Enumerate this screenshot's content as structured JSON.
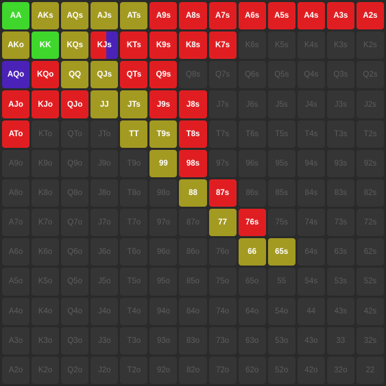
{
  "colors": {
    "red": "#e01e22",
    "olive": "#a39a22",
    "green": "#3fd72c",
    "purple": "#4a22b8",
    "empty": "#353535"
  },
  "grid": [
    [
      [
        "AA",
        "green"
      ],
      [
        "AKs",
        "olive"
      ],
      [
        "AQs",
        "olive"
      ],
      [
        "AJs",
        "olive"
      ],
      [
        "ATs",
        "olive"
      ],
      [
        "A9s",
        "red"
      ],
      [
        "A8s",
        "red"
      ],
      [
        "A7s",
        "red"
      ],
      [
        "A6s",
        "red"
      ],
      [
        "A5s",
        "red"
      ],
      [
        "A4s",
        "red"
      ],
      [
        "A3s",
        "red"
      ],
      [
        "A2s",
        "red"
      ]
    ],
    [
      [
        "AKo",
        "olive"
      ],
      [
        "KK",
        "green"
      ],
      [
        "KQs",
        "olive"
      ],
      [
        "KJs",
        "split"
      ],
      [
        "KTs",
        "red"
      ],
      [
        "K9s",
        "red"
      ],
      [
        "K8s",
        "red"
      ],
      [
        "K7s",
        "red"
      ],
      [
        "K6s",
        "empty"
      ],
      [
        "K5s",
        "empty"
      ],
      [
        "K4s",
        "empty"
      ],
      [
        "K3s",
        "empty"
      ],
      [
        "K2s",
        "empty"
      ]
    ],
    [
      [
        "AQo",
        "purple"
      ],
      [
        "KQo",
        "red"
      ],
      [
        "QQ",
        "olive"
      ],
      [
        "QJs",
        "olive"
      ],
      [
        "QTs",
        "red"
      ],
      [
        "Q9s",
        "red"
      ],
      [
        "Q8s",
        "empty"
      ],
      [
        "Q7s",
        "empty"
      ],
      [
        "Q6s",
        "empty"
      ],
      [
        "Q5s",
        "empty"
      ],
      [
        "Q4s",
        "empty"
      ],
      [
        "Q3s",
        "empty"
      ],
      [
        "Q2s",
        "empty"
      ]
    ],
    [
      [
        "AJo",
        "red"
      ],
      [
        "KJo",
        "red"
      ],
      [
        "QJo",
        "red"
      ],
      [
        "JJ",
        "olive"
      ],
      [
        "JTs",
        "olive"
      ],
      [
        "J9s",
        "red"
      ],
      [
        "J8s",
        "red"
      ],
      [
        "J7s",
        "empty"
      ],
      [
        "J6s",
        "empty"
      ],
      [
        "J5s",
        "empty"
      ],
      [
        "J4s",
        "empty"
      ],
      [
        "J3s",
        "empty"
      ],
      [
        "J2s",
        "empty"
      ]
    ],
    [
      [
        "ATo",
        "red"
      ],
      [
        "KTo",
        "empty"
      ],
      [
        "QTo",
        "empty"
      ],
      [
        "JTo",
        "empty"
      ],
      [
        "TT",
        "olive"
      ],
      [
        "T9s",
        "olive"
      ],
      [
        "T8s",
        "red"
      ],
      [
        "T7s",
        "empty"
      ],
      [
        "T6s",
        "empty"
      ],
      [
        "T5s",
        "empty"
      ],
      [
        "T4s",
        "empty"
      ],
      [
        "T3s",
        "empty"
      ],
      [
        "T2s",
        "empty"
      ]
    ],
    [
      [
        "A9o",
        "empty"
      ],
      [
        "K9o",
        "empty"
      ],
      [
        "Q9o",
        "empty"
      ],
      [
        "J9o",
        "empty"
      ],
      [
        "T9o",
        "empty"
      ],
      [
        "99",
        "olive"
      ],
      [
        "98s",
        "red"
      ],
      [
        "97s",
        "empty"
      ],
      [
        "96s",
        "empty"
      ],
      [
        "95s",
        "empty"
      ],
      [
        "94s",
        "empty"
      ],
      [
        "93s",
        "empty"
      ],
      [
        "92s",
        "empty"
      ]
    ],
    [
      [
        "A8o",
        "empty"
      ],
      [
        "K8o",
        "empty"
      ],
      [
        "Q8o",
        "empty"
      ],
      [
        "J8o",
        "empty"
      ],
      [
        "T8o",
        "empty"
      ],
      [
        "98o",
        "empty"
      ],
      [
        "88",
        "olive"
      ],
      [
        "87s",
        "red"
      ],
      [
        "86s",
        "empty"
      ],
      [
        "85s",
        "empty"
      ],
      [
        "84s",
        "empty"
      ],
      [
        "83s",
        "empty"
      ],
      [
        "82s",
        "empty"
      ]
    ],
    [
      [
        "A7o",
        "empty"
      ],
      [
        "K7o",
        "empty"
      ],
      [
        "Q7o",
        "empty"
      ],
      [
        "J7o",
        "empty"
      ],
      [
        "T7o",
        "empty"
      ],
      [
        "97o",
        "empty"
      ],
      [
        "87o",
        "empty"
      ],
      [
        "77",
        "olive"
      ],
      [
        "76s",
        "red"
      ],
      [
        "75s",
        "empty"
      ],
      [
        "74s",
        "empty"
      ],
      [
        "73s",
        "empty"
      ],
      [
        "72s",
        "empty"
      ]
    ],
    [
      [
        "A6o",
        "empty"
      ],
      [
        "K6o",
        "empty"
      ],
      [
        "Q6o",
        "empty"
      ],
      [
        "J6o",
        "empty"
      ],
      [
        "T6o",
        "empty"
      ],
      [
        "96o",
        "empty"
      ],
      [
        "86o",
        "empty"
      ],
      [
        "76o",
        "empty"
      ],
      [
        "66",
        "olive"
      ],
      [
        "65s",
        "olive"
      ],
      [
        "64s",
        "empty"
      ],
      [
        "63s",
        "empty"
      ],
      [
        "62s",
        "empty"
      ]
    ],
    [
      [
        "A5o",
        "empty"
      ],
      [
        "K5o",
        "empty"
      ],
      [
        "Q5o",
        "empty"
      ],
      [
        "J5o",
        "empty"
      ],
      [
        "T5o",
        "empty"
      ],
      [
        "95o",
        "empty"
      ],
      [
        "85o",
        "empty"
      ],
      [
        "75o",
        "empty"
      ],
      [
        "65o",
        "empty"
      ],
      [
        "55",
        "empty"
      ],
      [
        "54s",
        "empty"
      ],
      [
        "53s",
        "empty"
      ],
      [
        "52s",
        "empty"
      ]
    ],
    [
      [
        "A4o",
        "empty"
      ],
      [
        "K4o",
        "empty"
      ],
      [
        "Q4o",
        "empty"
      ],
      [
        "J4o",
        "empty"
      ],
      [
        "T4o",
        "empty"
      ],
      [
        "94o",
        "empty"
      ],
      [
        "84o",
        "empty"
      ],
      [
        "74o",
        "empty"
      ],
      [
        "64o",
        "empty"
      ],
      [
        "54o",
        "empty"
      ],
      [
        "44",
        "empty"
      ],
      [
        "43s",
        "empty"
      ],
      [
        "42s",
        "empty"
      ]
    ],
    [
      [
        "A3o",
        "empty"
      ],
      [
        "K3o",
        "empty"
      ],
      [
        "Q3o",
        "empty"
      ],
      [
        "J3o",
        "empty"
      ],
      [
        "T3o",
        "empty"
      ],
      [
        "93o",
        "empty"
      ],
      [
        "83o",
        "empty"
      ],
      [
        "73o",
        "empty"
      ],
      [
        "63o",
        "empty"
      ],
      [
        "53o",
        "empty"
      ],
      [
        "43o",
        "empty"
      ],
      [
        "33",
        "empty"
      ],
      [
        "32s",
        "empty"
      ]
    ],
    [
      [
        "A2o",
        "empty"
      ],
      [
        "K2o",
        "empty"
      ],
      [
        "Q2o",
        "empty"
      ],
      [
        "J2o",
        "empty"
      ],
      [
        "T2o",
        "empty"
      ],
      [
        "92o",
        "empty"
      ],
      [
        "82o",
        "empty"
      ],
      [
        "72o",
        "empty"
      ],
      [
        "62o",
        "empty"
      ],
      [
        "52o",
        "empty"
      ],
      [
        "42o",
        "empty"
      ],
      [
        "32o",
        "empty"
      ],
      [
        "22",
        "empty"
      ]
    ]
  ]
}
